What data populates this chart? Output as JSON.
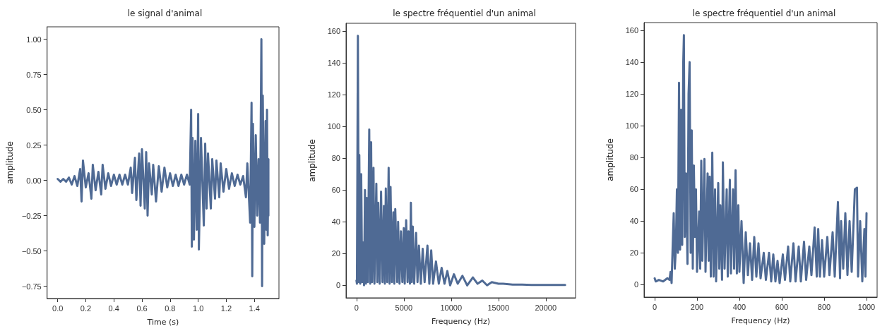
{
  "chart_data": [
    {
      "type": "line",
      "title": "le signal d'animal",
      "xlabel": "Time (s)",
      "ylabel": "amplitude",
      "grid": false,
      "marker": "none",
      "line_style": "solid",
      "xlim": [
        -0.075,
        1.575
      ],
      "ylim": [
        -0.8375,
        1.0875
      ],
      "xticks": [
        {
          "value": 0,
          "label": "0.0"
        },
        {
          "value": 0.2,
          "label": "0.2"
        },
        {
          "value": 0.4,
          "label": "0.4"
        },
        {
          "value": 0.6,
          "label": "0.6"
        },
        {
          "value": 0.8,
          "label": "0.8"
        },
        {
          "value": 1,
          "label": "1.0"
        },
        {
          "value": 1.2,
          "label": "1.2"
        },
        {
          "value": 1.4,
          "label": "1.4"
        }
      ],
      "yticks": [
        {
          "value": -0.75,
          "label": "−0.75"
        },
        {
          "value": -0.5,
          "label": "−0.50"
        },
        {
          "value": -0.25,
          "label": "−0.25"
        },
        {
          "value": 0,
          "label": "0.00"
        },
        {
          "value": 0.25,
          "label": "0.25"
        },
        {
          "value": 0.5,
          "label": "0.50"
        },
        {
          "value": 0.75,
          "label": "0.75"
        },
        {
          "value": 1,
          "label": "1.00"
        }
      ],
      "series": [
        {
          "color": "#4f6a94",
          "x": [
            0,
            0.02,
            0.04,
            0.06,
            0.08,
            0.1,
            0.12,
            0.14,
            0.16,
            0.17,
            0.18,
            0.2,
            0.22,
            0.24,
            0.25,
            0.27,
            0.29,
            0.31,
            0.32,
            0.34,
            0.36,
            0.38,
            0.4,
            0.42,
            0.44,
            0.46,
            0.48,
            0.5,
            0.52,
            0.53,
            0.55,
            0.56,
            0.58,
            0.59,
            0.6,
            0.62,
            0.63,
            0.64,
            0.65,
            0.67,
            0.68,
            0.7,
            0.72,
            0.74,
            0.76,
            0.78,
            0.8,
            0.82,
            0.84,
            0.86,
            0.88,
            0.9,
            0.92,
            0.94,
            0.95,
            0.955,
            0.96,
            0.97,
            0.98,
            0.99,
            1,
            1.005,
            1.02,
            1.04,
            1.05,
            1.06,
            1.07,
            1.09,
            1.1,
            1.12,
            1.13,
            1.15,
            1.16,
            1.18,
            1.2,
            1.22,
            1.24,
            1.26,
            1.28,
            1.3,
            1.32,
            1.34,
            1.35,
            1.37,
            1.38,
            1.385,
            1.39,
            1.4,
            1.41,
            1.42,
            1.43,
            1.44,
            1.45,
            1.455,
            1.46,
            1.47,
            1.48,
            1.485,
            1.49,
            1.495,
            1.5,
            1.5
          ],
          "values": [
            0.01,
            -0.01,
            0.01,
            -0.01,
            0.02,
            -0.03,
            0.03,
            -0.04,
            0.08,
            -0.15,
            0.14,
            -0.05,
            0.05,
            -0.13,
            0.11,
            -0.07,
            0.06,
            -0.1,
            0.11,
            -0.06,
            0.05,
            -0.04,
            0.04,
            -0.03,
            0.04,
            -0.03,
            0.04,
            -0.03,
            0.09,
            -0.09,
            0.16,
            -0.14,
            0.19,
            -0.18,
            0.22,
            -0.2,
            0.2,
            -0.25,
            0.12,
            -0.1,
            0.11,
            -0.15,
            0.1,
            -0.08,
            0.09,
            -0.05,
            0.05,
            -0.04,
            0.04,
            -0.04,
            0.04,
            -0.03,
            0.04,
            -0.03,
            0.5,
            -0.47,
            0.3,
            -0.42,
            0.28,
            -0.35,
            0.47,
            -0.49,
            0.3,
            -0.32,
            0.26,
            -0.2,
            0.19,
            -0.2,
            0.15,
            -0.13,
            0.14,
            -0.12,
            0.12,
            -0.08,
            0.08,
            -0.06,
            0.05,
            -0.04,
            0.04,
            -0.03,
            0.03,
            -0.12,
            0.12,
            -0.3,
            0.55,
            -0.68,
            0.4,
            -0.33,
            0.32,
            -0.25,
            0.15,
            -0.3,
            1,
            -0.75,
            0.6,
            -0.45,
            0.42,
            -0.35,
            0.5,
            -0.39,
            0.15,
            -0.25
          ]
        }
      ]
    },
    {
      "type": "line",
      "title": "le spectre fréquentiel d'un animal",
      "xlabel": "Frequency (Hz)",
      "ylabel": "amplitude",
      "grid": false,
      "marker": "none",
      "line_style": "solid",
      "xlim": [
        -1102,
        23152
      ],
      "ylim": [
        -7.85,
        164.85
      ],
      "xticks": [
        0,
        5000,
        10000,
        15000,
        20000
      ],
      "yticks": [
        0,
        20,
        40,
        60,
        80,
        100,
        120,
        140,
        160
      ],
      "series": [
        {
          "color": "#4f6a94",
          "x": [
            0,
            50,
            150,
            250,
            300,
            400,
            500,
            600,
            700,
            800,
            900,
            1000,
            1100,
            1200,
            1350,
            1450,
            1550,
            1650,
            1800,
            1900,
            2100,
            2200,
            2300,
            2450,
            2600,
            2750,
            2900,
            3000,
            3100,
            3250,
            3400,
            3500,
            3600,
            3750,
            3900,
            4000,
            4100,
            4300,
            4400,
            4550,
            4700,
            4850,
            5000,
            5100,
            5250,
            5400,
            5500,
            5650,
            5750,
            5850,
            5950,
            6100,
            6300,
            6450,
            6600,
            6800,
            7000,
            7200,
            7500,
            7700,
            7900,
            8100,
            8400,
            8700,
            9000,
            9300,
            9600,
            9900,
            10300,
            10700,
            11200,
            11700,
            12300,
            12800,
            13300,
            13800,
            14300,
            15000,
            15500,
            16500,
            17500,
            18500,
            19500,
            20500,
            21500,
            22050
          ],
          "values": [
            3,
            1,
            157,
            2,
            82,
            1,
            70,
            2,
            27,
            0,
            60,
            1,
            55,
            2,
            98,
            1,
            90,
            2,
            74,
            1,
            64,
            2,
            52,
            1,
            59,
            2,
            50,
            1,
            61,
            2,
            74,
            1,
            62,
            2,
            46,
            1,
            48,
            2,
            40,
            1,
            34,
            2,
            36,
            1,
            41,
            2,
            34,
            1,
            52,
            2,
            37,
            1,
            33,
            2,
            25,
            1,
            23,
            2,
            25,
            1,
            22,
            1,
            15,
            1,
            11,
            1,
            9,
            0,
            7,
            1,
            6,
            0,
            5,
            1,
            3,
            0,
            2,
            1,
            1,
            0.5,
            0.5,
            0.3,
            0.3,
            0.2,
            0.2,
            0.2
          ]
        }
      ]
    },
    {
      "type": "line",
      "title": "le spectre fréquentiel d'un animal",
      "xlabel": "Frequency (Hz)",
      "ylabel": "amplitude",
      "grid": false,
      "marker": "none",
      "line_style": "solid",
      "xlim": [
        -50,
        1050
      ],
      "ylim": [
        -7.85,
        164.85
      ],
      "xticks": [
        0,
        200,
        400,
        600,
        800,
        1000
      ],
      "yticks": [
        0,
        20,
        40,
        60,
        80,
        100,
        120,
        140,
        160
      ],
      "series": [
        {
          "color": "#4f6a94",
          "x": [
            0,
            5,
            20,
            40,
            60,
            70,
            75,
            80,
            85,
            90,
            95,
            100,
            105,
            110,
            115,
            120,
            125,
            130,
            135,
            138,
            142,
            148,
            155,
            160,
            165,
            170,
            175,
            180,
            185,
            190,
            195,
            200,
            210,
            215,
            220,
            225,
            235,
            240,
            250,
            255,
            260,
            265,
            272,
            278,
            285,
            290,
            300,
            305,
            310,
            318,
            322,
            330,
            340,
            345,
            355,
            360,
            370,
            375,
            382,
            388,
            395,
            400,
            410,
            420,
            430,
            440,
            450,
            460,
            470,
            480,
            490,
            500,
            515,
            525,
            540,
            550,
            560,
            570,
            580,
            590,
            605,
            615,
            630,
            640,
            655,
            665,
            680,
            690,
            705,
            715,
            730,
            740,
            755,
            765,
            772,
            780,
            790,
            800,
            815,
            825,
            840,
            850,
            865,
            875,
            880,
            890,
            900,
            910,
            920,
            930,
            945,
            955,
            960,
            970,
            980,
            990,
            995,
            1000
          ],
          "values": [
            4,
            2,
            3,
            2,
            4,
            3,
            8,
            1,
            24,
            45,
            10,
            22,
            60,
            20,
            127,
            22,
            110,
            25,
            140,
            157,
            30,
            70,
            13,
            120,
            140,
            20,
            97,
            10,
            75,
            30,
            60,
            8,
            46,
            10,
            78,
            15,
            79,
            8,
            70,
            15,
            68,
            5,
            83,
            5,
            60,
            2,
            64,
            10,
            50,
            3,
            77,
            10,
            60,
            5,
            66,
            7,
            60,
            10,
            72,
            7,
            50,
            8,
            40,
            1,
            33,
            6,
            26,
            3,
            30,
            5,
            26,
            4,
            20,
            3,
            20,
            2,
            19,
            2,
            15,
            1,
            19,
            3,
            24,
            2,
            26,
            2,
            24,
            2,
            27,
            3,
            24,
            6,
            36,
            5,
            35,
            5,
            28,
            5,
            30,
            6,
            33,
            5,
            52,
            4,
            40,
            10,
            45,
            6,
            40,
            8,
            60,
            61,
            5,
            40,
            2,
            35,
            5,
            45
          ]
        }
      ]
    }
  ]
}
